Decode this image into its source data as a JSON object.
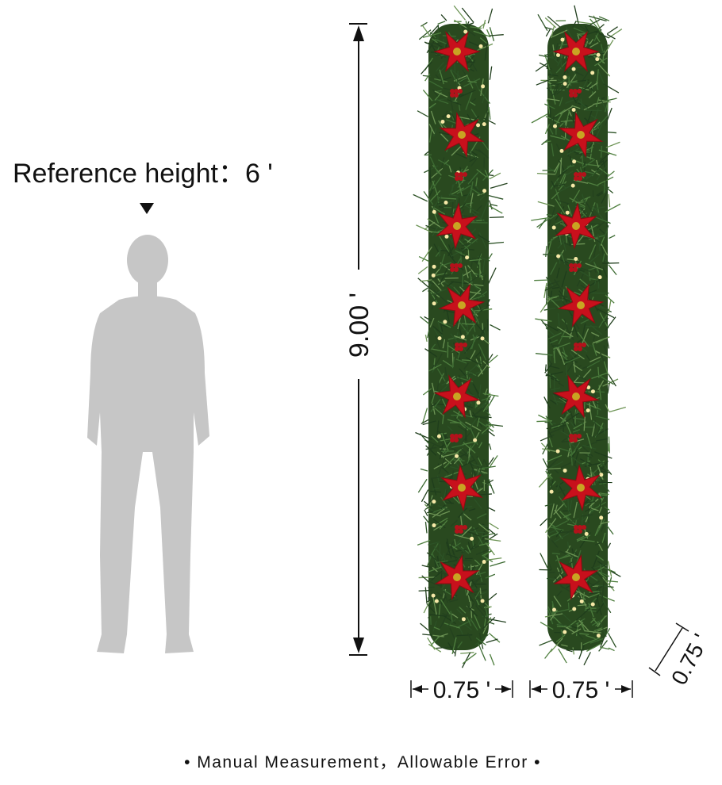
{
  "reference_height": "Reference height：6 '",
  "height_label": "9.00 '",
  "width_labels": [
    "0.75 '",
    "0.75 '"
  ],
  "depth_label": "0.75 '",
  "footer": "• Manual Measurement，Allowable Error •"
}
